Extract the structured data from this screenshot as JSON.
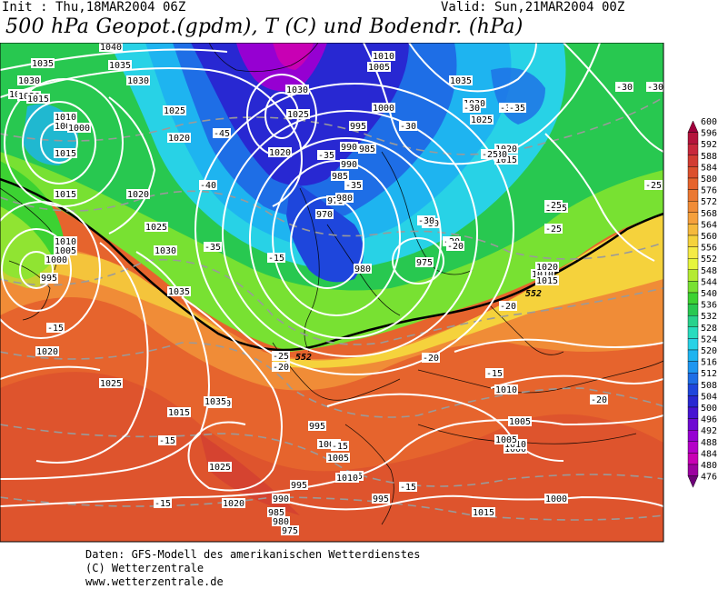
{
  "header": {
    "init": "Init : Thu,18MAR2004 06Z",
    "valid": "Valid: Sun,21MAR2004 00Z",
    "title": "500 hPa Geopot.(gpdm), T (C) und Bodendr. (hPa)"
  },
  "footer": {
    "line1": "Daten: GFS-Modell des amerikanischen Wetterdienstes",
    "line2": "(C) Wetterzentrale",
    "line3": "www.wetterzentrale.de"
  },
  "colorbar": {
    "levels": [
      "600",
      "596",
      "592",
      "588",
      "584",
      "580",
      "576",
      "572",
      "568",
      "564",
      "560",
      "556",
      "552",
      "548",
      "544",
      "540",
      "536",
      "532",
      "528",
      "524",
      "520",
      "516",
      "512",
      "508",
      "504",
      "500",
      "496",
      "492",
      "488",
      "484",
      "480",
      "476"
    ],
    "colors": [
      "#a0003c",
      "#b4143c",
      "#c8283c",
      "#d23c32",
      "#dc502d",
      "#e6642d",
      "#eb7832",
      "#f08c37",
      "#f5a03c",
      "#f5b93c",
      "#f5d23c",
      "#f5eb46",
      "#e6f53c",
      "#b4eb32",
      "#78e132",
      "#3cd232",
      "#28c850",
      "#28d28c",
      "#28dcbe",
      "#28d2e6",
      "#1eb4f0",
      "#1e96f0",
      "#1e6ee6",
      "#1e46dc",
      "#2828d2",
      "#4614d2",
      "#6e0ad2",
      "#9600d2",
      "#b400c8",
      "#c800b4",
      "#9c00a0",
      "#6e0078"
    ]
  },
  "map_labels": {
    "pressure": [
      "1040",
      "1035",
      "1030",
      "1025",
      "1020",
      "1015",
      "1010",
      "1005",
      "1000",
      "995",
      "990",
      "985",
      "980",
      "975",
      "970",
      "1035",
      "1030",
      "1025",
      "1020",
      "1015",
      "1010",
      "1005",
      "1000",
      "995",
      "990",
      "985",
      "980",
      "975",
      "1030",
      "1025",
      "1020",
      "1015",
      "1010",
      "1005",
      "1000",
      "995",
      "1035",
      "1030",
      "1025",
      "1020",
      "1015",
      "1010",
      "1020",
      "1025",
      "1030",
      "1035",
      "1020",
      "1025",
      "1020",
      "1015",
      "1025",
      "1020",
      "1015",
      "1010",
      "1005",
      "1000",
      "995",
      "1010",
      "1005",
      "1000",
      "995",
      "1015",
      "1035",
      "1025",
      "1020",
      "1015",
      "1010",
      "1005",
      "1000",
      "995",
      "990",
      "985",
      "980",
      "975"
    ],
    "temperature": [
      "-30",
      "-35",
      "-40",
      "-45",
      "-35",
      "-35",
      "-30",
      "-25",
      "-25",
      "-30",
      "-35",
      "-20",
      "-25",
      "-20",
      "-15",
      "-15",
      "-15",
      "-15",
      "-15",
      "-20",
      "-20",
      "-30",
      "-30",
      "-30",
      "-25",
      "-35",
      "-15",
      "-20",
      "-15",
      "-30",
      "-20",
      "-25"
    ],
    "height": [
      "552",
      "552"
    ]
  }
}
